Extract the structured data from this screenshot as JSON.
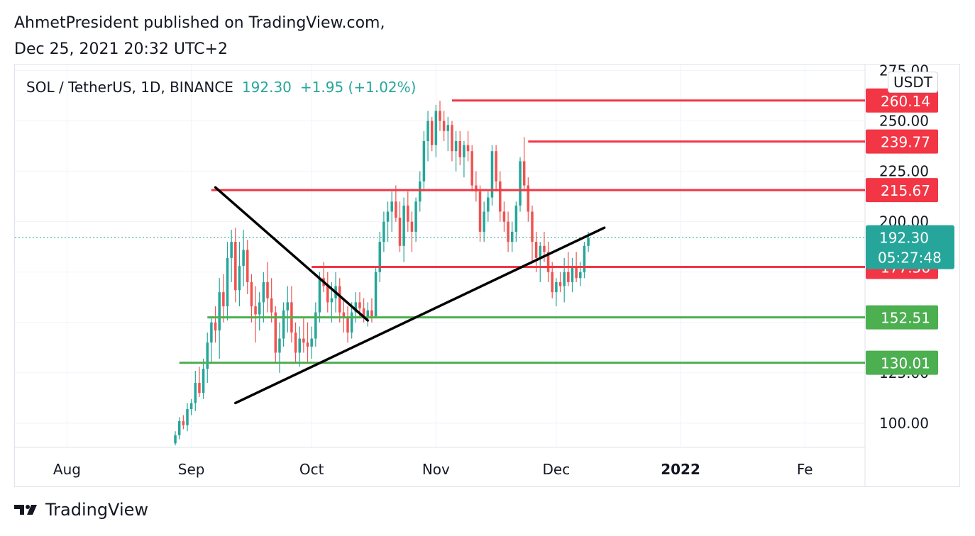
{
  "header": {
    "published_line": "AhmetPresident published on TradingView.com,",
    "date_line": "Dec 25, 2021 20:32 UTC+2"
  },
  "legend": {
    "symbol": "SOL / TetherUS, 1D, BINANCE",
    "price": "192.30",
    "change": "+1.95 (+1.02%)"
  },
  "unit_label": "USDT",
  "footer": {
    "brand": "TradingView"
  },
  "colors": {
    "up": "#26a69a",
    "down": "#ef5350",
    "resistance": "#f23645",
    "support": "#4caf50",
    "trend": "#000000"
  },
  "chart_data": {
    "type": "candlestick",
    "title": "SOL / TetherUS, 1D, BINANCE",
    "xlabel": "",
    "ylabel": "",
    "ylim": [
      88,
      278
    ],
    "x_ticks": [
      "Aug",
      "Sep",
      "Oct",
      "Nov",
      "Dec",
      "2022",
      "Fe"
    ],
    "y_ticks": [
      100,
      125,
      150,
      175,
      200,
      225,
      250,
      275
    ],
    "y_tick_labels": [
      "100.00",
      "125.00",
      "150.00",
      "175.00",
      "200.00",
      "225.00",
      "250.00",
      "275.00"
    ],
    "last_price": {
      "value": 192.3,
      "label": "192.30",
      "countdown": "05:27:48"
    },
    "horizontal_levels": [
      {
        "value": 260.14,
        "label": "260.14",
        "role": "resistance",
        "from": "2021-11-05"
      },
      {
        "value": 239.77,
        "label": "239.77",
        "role": "resistance",
        "from": "2021-11-24"
      },
      {
        "value": 215.67,
        "label": "215.67",
        "role": "resistance",
        "from": "2021-09-06"
      },
      {
        "value": 177.56,
        "label": "177.56",
        "role": "resistance",
        "from": "2021-10-01"
      },
      {
        "value": 152.51,
        "label": "152.51",
        "role": "support",
        "from": "2021-09-05"
      },
      {
        "value": 130.01,
        "label": "130.01",
        "role": "support",
        "from": "2021-08-29"
      }
    ],
    "trend_lines": [
      {
        "from": [
          "2021-09-07",
          217
        ],
        "to": [
          "2021-10-15",
          151
        ]
      },
      {
        "from": [
          "2021-09-12",
          110
        ],
        "to": [
          "2021-12-13",
          197
        ]
      }
    ],
    "x_range": [
      "2021-07-19",
      "2022-02-16"
    ],
    "series": [
      {
        "name": "SOL / TetherUS",
        "ohlc_start": "2021-08-28",
        "ohlc": [
          [
            90,
            96,
            89,
            94
          ],
          [
            94,
            103,
            92,
            101
          ],
          [
            101,
            104,
            97,
            99
          ],
          [
            99,
            110,
            96,
            107
          ],
          [
            107,
            112,
            104,
            110
          ],
          [
            110,
            126,
            106,
            120
          ],
          [
            120,
            128,
            113,
            115
          ],
          [
            115,
            132,
            112,
            127
          ],
          [
            127,
            145,
            120,
            140
          ],
          [
            140,
            153,
            130,
            150
          ],
          [
            150,
            158,
            140,
            146
          ],
          [
            146,
            172,
            132,
            165
          ],
          [
            165,
            174,
            150,
            158
          ],
          [
            158,
            190,
            151,
            182
          ],
          [
            182,
            196,
            170,
            190
          ],
          [
            190,
            197,
            160,
            166
          ],
          [
            166,
            190,
            158,
            178
          ],
          [
            178,
            196,
            168,
            186
          ],
          [
            186,
            191,
            164,
            170
          ],
          [
            170,
            174,
            150,
            158
          ],
          [
            158,
            168,
            140,
            154
          ],
          [
            154,
            165,
            146,
            160
          ],
          [
            160,
            175,
            150,
            170
          ],
          [
            170,
            180,
            155,
            162
          ],
          [
            162,
            172,
            150,
            155
          ],
          [
            155,
            158,
            130,
            135
          ],
          [
            135,
            150,
            125,
            142
          ],
          [
            142,
            160,
            138,
            156
          ],
          [
            156,
            168,
            145,
            160
          ],
          [
            160,
            168,
            140,
            145
          ],
          [
            145,
            150,
            130,
            135
          ],
          [
            135,
            148,
            128,
            142
          ],
          [
            142,
            152,
            135,
            140
          ],
          [
            140,
            150,
            130,
            138
          ],
          [
            138,
            148,
            132,
            142
          ],
          [
            142,
            160,
            138,
            155
          ],
          [
            155,
            175,
            150,
            172
          ],
          [
            172,
            180,
            165,
            168
          ],
          [
            168,
            175,
            155,
            160
          ],
          [
            160,
            170,
            150,
            162
          ],
          [
            162,
            175,
            155,
            168
          ],
          [
            168,
            172,
            150,
            155
          ],
          [
            155,
            162,
            145,
            152
          ],
          [
            152,
            158,
            140,
            145
          ],
          [
            145,
            160,
            142,
            155
          ],
          [
            155,
            165,
            150,
            160
          ],
          [
            160,
            165,
            152,
            157
          ],
          [
            157,
            162,
            150,
            152
          ],
          [
            152,
            160,
            148,
            156
          ],
          [
            156,
            162,
            150,
            153
          ],
          [
            153,
            178,
            152,
            175
          ],
          [
            175,
            195,
            170,
            190
          ],
          [
            190,
            205,
            185,
            200
          ],
          [
            200,
            210,
            190,
            205
          ],
          [
            205,
            215,
            195,
            210
          ],
          [
            210,
            218,
            200,
            202
          ],
          [
            202,
            210,
            185,
            188
          ],
          [
            188,
            212,
            180,
            208
          ],
          [
            208,
            215,
            195,
            200
          ],
          [
            200,
            205,
            185,
            195
          ],
          [
            195,
            212,
            190,
            210
          ],
          [
            210,
            225,
            205,
            220
          ],
          [
            220,
            245,
            215,
            240
          ],
          [
            240,
            255,
            230,
            250
          ],
          [
            250,
            252,
            235,
            238
          ],
          [
            238,
            258,
            232,
            255
          ],
          [
            255,
            260,
            245,
            250
          ],
          [
            250,
            255,
            240,
            245
          ],
          [
            245,
            252,
            235,
            248
          ],
          [
            248,
            250,
            230,
            235
          ],
          [
            235,
            245,
            225,
            240
          ],
          [
            240,
            245,
            228,
            232
          ],
          [
            232,
            240,
            222,
            238
          ],
          [
            238,
            245,
            230,
            235
          ],
          [
            235,
            238,
            215,
            218
          ],
          [
            218,
            225,
            210,
            215
          ],
          [
            215,
            218,
            190,
            195
          ],
          [
            195,
            210,
            190,
            205
          ],
          [
            205,
            215,
            200,
            212
          ],
          [
            212,
            238,
            208,
            235
          ],
          [
            235,
            238,
            215,
            220
          ],
          [
            220,
            225,
            200,
            205
          ],
          [
            205,
            210,
            195,
            200
          ],
          [
            200,
            205,
            185,
            190
          ],
          [
            190,
            200,
            185,
            195
          ],
          [
            195,
            210,
            190,
            208
          ],
          [
            208,
            232,
            205,
            230
          ],
          [
            230,
            242,
            215,
            218
          ],
          [
            218,
            222,
            200,
            205
          ],
          [
            205,
            208,
            180,
            190
          ],
          [
            190,
            195,
            175,
            182
          ],
          [
            182,
            190,
            170,
            188
          ],
          [
            188,
            195,
            180,
            185
          ],
          [
            185,
            190,
            170,
            175
          ],
          [
            175,
            180,
            162,
            165
          ],
          [
            165,
            172,
            158,
            170
          ],
          [
            170,
            175,
            165,
            168
          ],
          [
            168,
            182,
            160,
            175
          ],
          [
            175,
            185,
            168,
            170
          ],
          [
            170,
            182,
            165,
            178
          ],
          [
            178,
            185,
            170,
            172
          ],
          [
            172,
            180,
            168,
            175
          ],
          [
            175,
            190,
            172,
            188
          ],
          [
            188,
            195,
            185,
            192
          ]
        ]
      }
    ]
  }
}
